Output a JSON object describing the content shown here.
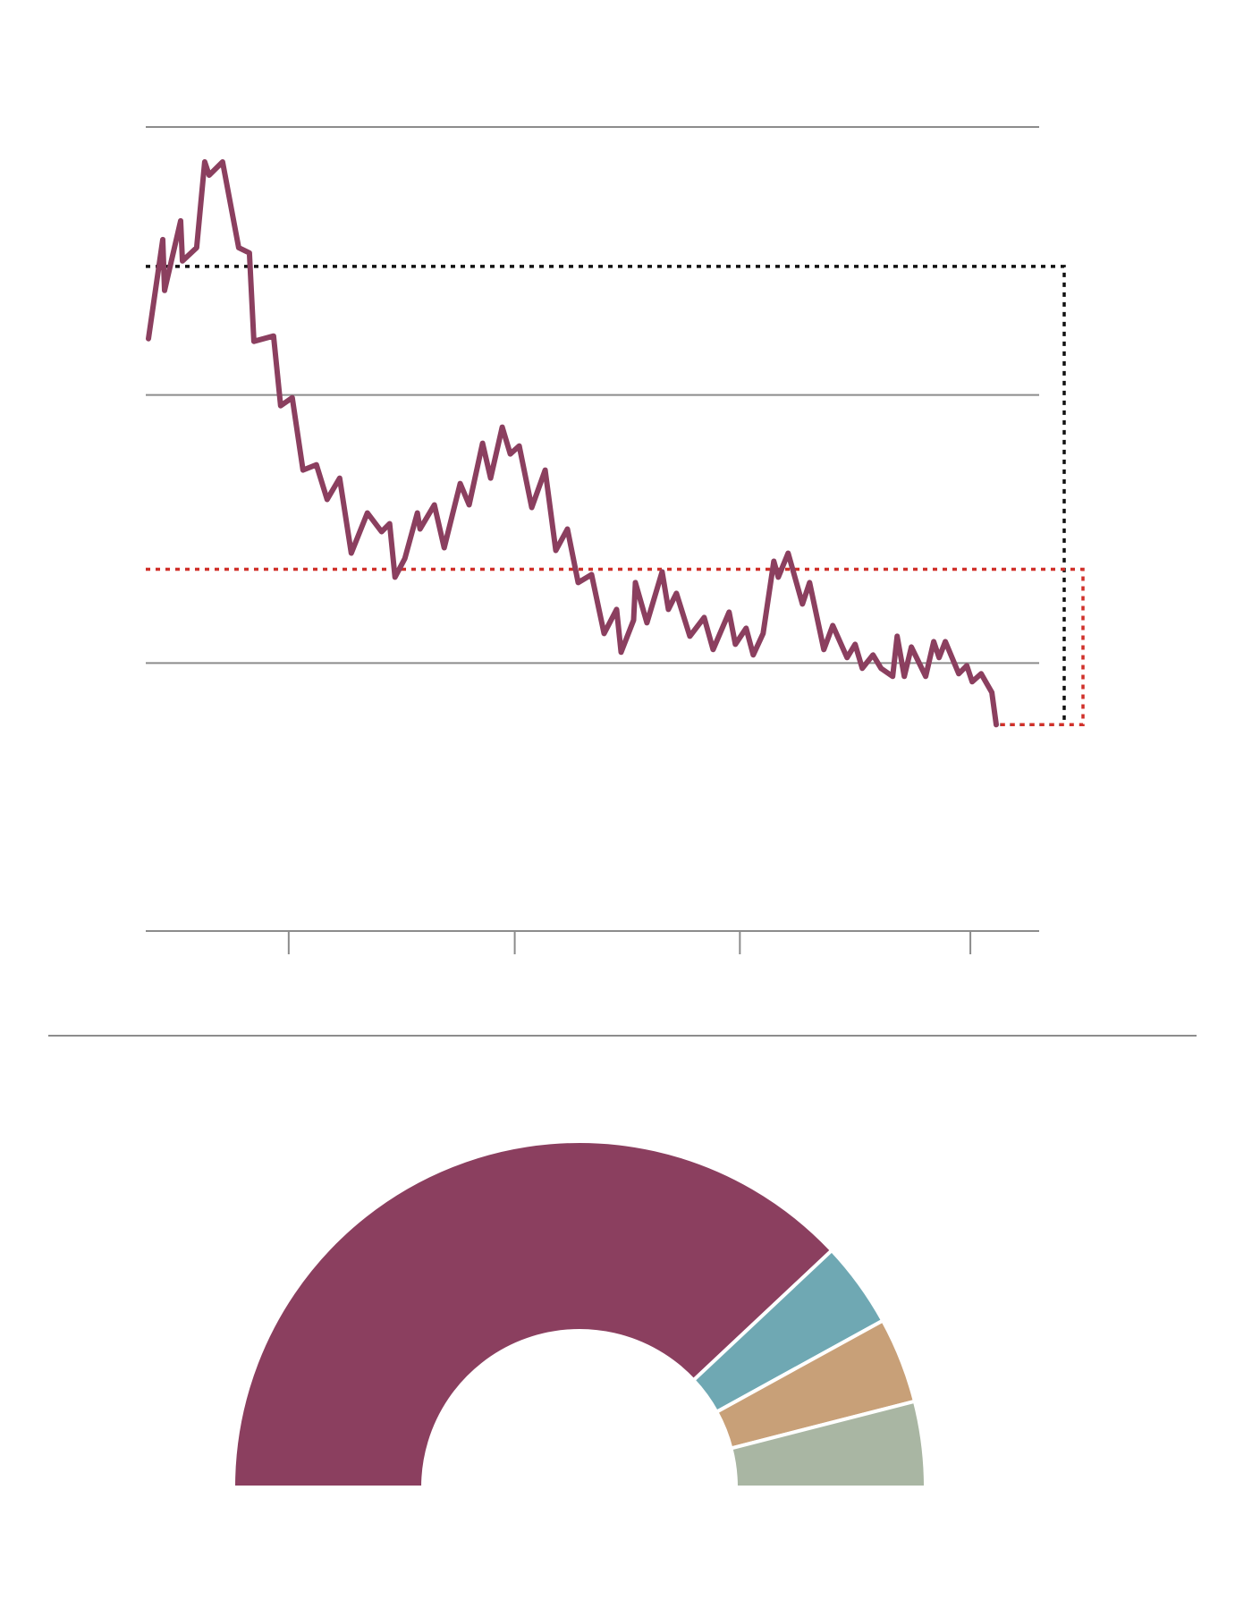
{
  "colors": {
    "line": "#8b3f5f",
    "gridline": "#8c8c8c",
    "reference_black": "#111111",
    "reference_red": "#d0302a",
    "pie": [
      "#8b3f5f",
      "#6fa8b3",
      "#c8a078",
      "#a9b6a3"
    ]
  },
  "chart_data": [
    {
      "type": "line",
      "title": "",
      "xlabel": "",
      "ylabel": "",
      "ylim": [
        0,
        3
      ],
      "xlim": [
        0,
        100
      ],
      "grid": true,
      "gridlines_y": [
        0,
        1,
        2,
        3
      ],
      "x_ticks": [
        16,
        41.3,
        66.5,
        92.3
      ],
      "series": [
        {
          "values": [
            [
              0.3,
              2.21
            ],
            [
              1.9,
              2.58
            ],
            [
              2.1,
              2.39
            ],
            [
              3.9,
              2.65
            ],
            [
              4.1,
              2.5
            ],
            [
              5.7,
              2.55
            ],
            [
              6.6,
              2.87
            ],
            [
              7.1,
              2.82
            ],
            [
              8.6,
              2.87
            ],
            [
              10.4,
              2.55
            ],
            [
              11.6,
              2.53
            ],
            [
              12.1,
              2.2
            ],
            [
              14.3,
              2.22
            ],
            [
              15.1,
              1.96
            ],
            [
              16.4,
              1.99
            ],
            [
              17.6,
              1.72
            ],
            [
              19.1,
              1.74
            ],
            [
              20.3,
              1.61
            ],
            [
              21.7,
              1.69
            ],
            [
              23,
              1.41
            ],
            [
              24.8,
              1.56
            ],
            [
              26.4,
              1.49
            ],
            [
              27.3,
              1.52
            ],
            [
              27.9,
              1.32
            ],
            [
              29,
              1.39
            ],
            [
              30.4,
              1.56
            ],
            [
              30.7,
              1.5
            ],
            [
              32.3,
              1.59
            ],
            [
              33.4,
              1.43
            ],
            [
              35.2,
              1.67
            ],
            [
              36.2,
              1.59
            ],
            [
              37.7,
              1.82
            ],
            [
              38.6,
              1.69
            ],
            [
              39.9,
              1.88
            ],
            [
              40.8,
              1.78
            ],
            [
              41.8,
              1.81
            ],
            [
              43.2,
              1.58
            ],
            [
              44.7,
              1.72
            ],
            [
              45.9,
              1.42
            ],
            [
              47.2,
              1.5
            ],
            [
              48.4,
              1.3
            ],
            [
              49.9,
              1.33
            ],
            [
              51.3,
              1.11
            ],
            [
              52.7,
              1.2
            ],
            [
              53.2,
              1.04
            ],
            [
              54.6,
              1.16
            ],
            [
              54.8,
              1.3
            ],
            [
              56.1,
              1.15
            ],
            [
              57.8,
              1.34
            ],
            [
              58.5,
              1.2
            ],
            [
              59.4,
              1.26
            ],
            [
              60.9,
              1.1
            ],
            [
              62.5,
              1.17
            ],
            [
              63.5,
              1.05
            ],
            [
              65.3,
              1.19
            ],
            [
              66,
              1.07
            ],
            [
              67.2,
              1.13
            ],
            [
              68,
              1.03
            ],
            [
              69.1,
              1.11
            ],
            [
              70.3,
              1.38
            ],
            [
              70.8,
              1.32
            ],
            [
              71.9,
              1.41
            ],
            [
              73.5,
              1.22
            ],
            [
              74.3,
              1.3
            ],
            [
              75.9,
              1.05
            ],
            [
              76.9,
              1.14
            ],
            [
              78.5,
              1.02
            ],
            [
              79.4,
              1.07
            ],
            [
              80.2,
              0.98
            ],
            [
              81.4,
              1.03
            ],
            [
              82.3,
              0.98
            ],
            [
              83.6,
              0.95
            ],
            [
              84.1,
              1.1
            ],
            [
              84.9,
              0.95
            ],
            [
              85.7,
              1.06
            ],
            [
              87.3,
              0.95
            ],
            [
              88.2,
              1.08
            ],
            [
              88.8,
              1.02
            ],
            [
              89.5,
              1.08
            ],
            [
              91,
              0.96
            ],
            [
              91.9,
              0.99
            ],
            [
              92.5,
              0.93
            ],
            [
              93.5,
              0.96
            ],
            [
              94.7,
              0.89
            ],
            [
              95.2,
              0.77
            ]
          ]
        }
      ],
      "reference_lines": [
        {
          "style": "dotted",
          "color": "#111111",
          "y": 2.48,
          "bracket_to_y": 0.77
        },
        {
          "style": "dotted",
          "color": "#d0302a",
          "y": 1.35,
          "bracket_to_y": 0.77
        }
      ]
    },
    {
      "type": "pie",
      "shape": "half-donut",
      "title": "",
      "slices": [
        {
          "value": 76
        },
        {
          "value": 8
        },
        {
          "value": 8
        },
        {
          "value": 8
        }
      ]
    }
  ]
}
